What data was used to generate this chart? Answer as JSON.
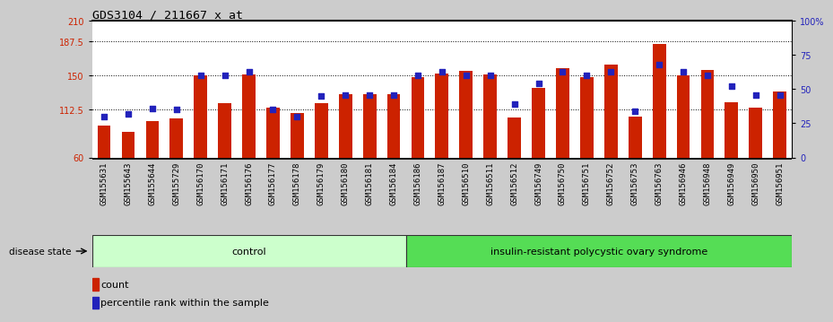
{
  "title": "GDS3104 / 211667_x_at",
  "categories": [
    "GSM155631",
    "GSM155643",
    "GSM155644",
    "GSM155729",
    "GSM156170",
    "GSM156171",
    "GSM156176",
    "GSM156177",
    "GSM156178",
    "GSM156179",
    "GSM156180",
    "GSM156181",
    "GSM156184",
    "GSM156186",
    "GSM156187",
    "GSM156510",
    "GSM156511",
    "GSM156512",
    "GSM156749",
    "GSM156750",
    "GSM156751",
    "GSM156752",
    "GSM156753",
    "GSM156763",
    "GSM156946",
    "GSM156948",
    "GSM156949",
    "GSM156950",
    "GSM156951"
  ],
  "bar_values": [
    95,
    88,
    100,
    103,
    150,
    120,
    151,
    115,
    109,
    120,
    130,
    130,
    130,
    148,
    152,
    155,
    151,
    104,
    136,
    158,
    148,
    162,
    105,
    185,
    150,
    156,
    121,
    115,
    132
  ],
  "dot_percentiles": [
    30,
    32,
    36,
    35,
    60,
    60,
    63,
    35,
    30,
    45,
    46,
    46,
    46,
    60,
    63,
    60,
    60,
    39,
    54,
    63,
    60,
    63,
    34,
    68,
    63,
    60,
    52,
    46,
    46
  ],
  "control_count": 13,
  "bar_color": "#cc2200",
  "dot_color": "#2222bb",
  "ymin": 60,
  "ymax": 210,
  "yticks_left": [
    60,
    112.5,
    150,
    187.5,
    210
  ],
  "ytick_left_labels": [
    "60",
    "112.5",
    "150",
    "187.5",
    "210"
  ],
  "yticks_right": [
    0,
    25,
    50,
    75,
    100
  ],
  "ytick_right_labels": [
    "0",
    "25",
    "50",
    "75",
    "100%"
  ],
  "gridlines": [
    112.5,
    150,
    187.5
  ],
  "control_label": "control",
  "disease_label": "insulin-resistant polycystic ovary syndrome",
  "disease_state_label": "disease state",
  "legend_count_label": "count",
  "legend_pct_label": "percentile rank within the sample",
  "fig_bg_color": "#cccccc",
  "plot_bg_color": "#ffffff",
  "xtick_bg_color": "#c8c8c8",
  "control_bg": "#ccffcc",
  "disease_bg": "#55dd55"
}
